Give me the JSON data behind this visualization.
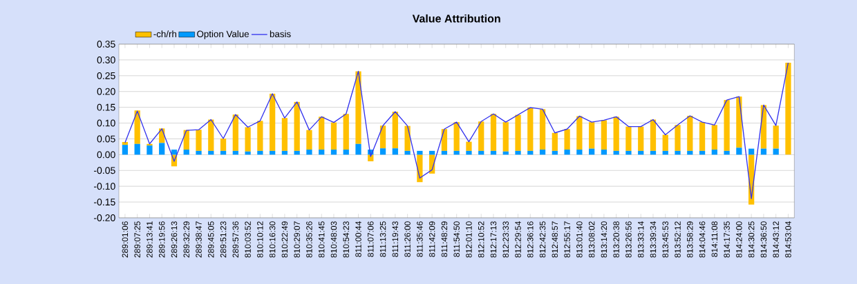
{
  "chart_data": {
    "type": "bar",
    "title": "Value Attribution",
    "stacked": true,
    "categories": [
      "289:01:06",
      "289:07:25",
      "289:13:41",
      "289:19:56",
      "289:26:13",
      "289:32:29",
      "289:38:47",
      "289:45:05",
      "289:51:23",
      "289:57:36",
      "810:03:52",
      "810:10:12",
      "810:16:30",
      "810:22:49",
      "810:29:07",
      "810:35:26",
      "810:41:45",
      "810:48:03",
      "810:54:23",
      "811:00:44",
      "811:07:06",
      "811:13:25",
      "811:19:43",
      "811:26:00",
      "811:35:46",
      "811:42:09",
      "811:48:29",
      "811:54:50",
      "812:01:10",
      "812:10:52",
      "812:17:13",
      "812:23:33",
      "812:29:54",
      "812:36:16",
      "812:42:35",
      "812:48:57",
      "812:55:17",
      "813:01:40",
      "813:08:02",
      "813:14:20",
      "813:20:38",
      "813:26:56",
      "813:33:14",
      "813:39:34",
      "813:45:53",
      "813:52:12",
      "813:58:29",
      "814:04:46",
      "814:11:08",
      "814:17:35",
      "814:24:00",
      "814:30:25",
      "814:36:50",
      "814:43:12",
      "814:53:04"
    ],
    "series": [
      {
        "name": "Option Value",
        "color": "#0099ff",
        "values": [
          0.031,
          0.034,
          0.029,
          0.037,
          0.016,
          0.016,
          0.012,
          0.012,
          0.012,
          0.012,
          0.01,
          0.012,
          0.012,
          0.012,
          0.012,
          0.016,
          0.016,
          0.016,
          0.016,
          0.034,
          0.016,
          0.02,
          0.02,
          0.012,
          0.012,
          0.012,
          0.012,
          0.012,
          0.012,
          0.012,
          0.012,
          0.01,
          0.012,
          0.012,
          0.016,
          0.012,
          0.016,
          0.016,
          0.019,
          0.016,
          0.012,
          0.012,
          0.012,
          0.012,
          0.012,
          0.012,
          0.012,
          0.012,
          0.016,
          0.012,
          0.022,
          0.019,
          0.019,
          0.019,
          0.0
        ]
      },
      {
        "name": "-ch/rh",
        "color": "#ffc000",
        "values": [
          0.009,
          0.106,
          0.005,
          0.046,
          -0.037,
          0.062,
          0.067,
          0.099,
          0.039,
          0.115,
          0.077,
          0.095,
          0.181,
          0.104,
          0.155,
          0.062,
          0.104,
          0.086,
          0.113,
          0.23,
          -0.021,
          0.072,
          0.116,
          0.079,
          -0.087,
          -0.06,
          0.069,
          0.091,
          0.029,
          0.093,
          0.117,
          0.093,
          0.114,
          0.137,
          0.128,
          0.057,
          0.065,
          0.106,
          0.084,
          0.093,
          0.108,
          0.077,
          0.077,
          0.099,
          0.051,
          0.082,
          0.111,
          0.091,
          0.078,
          0.161,
          0.162,
          -0.158,
          0.138,
          0.073,
          0.291
        ]
      },
      {
        "name": "basis",
        "type": "line",
        "color": "#3333ee",
        "values": [
          0.038,
          0.138,
          0.034,
          0.082,
          -0.021,
          0.077,
          0.079,
          0.111,
          0.051,
          0.127,
          0.087,
          0.107,
          0.193,
          0.116,
          0.167,
          0.078,
          0.12,
          0.102,
          0.129,
          0.264,
          -0.006,
          0.092,
          0.136,
          0.091,
          -0.074,
          -0.048,
          0.081,
          0.103,
          0.041,
          0.105,
          0.129,
          0.103,
          0.126,
          0.149,
          0.144,
          0.069,
          0.081,
          0.122,
          0.103,
          0.109,
          0.12,
          0.089,
          0.089,
          0.111,
          0.063,
          0.094,
          0.123,
          0.103,
          0.094,
          0.173,
          0.184,
          -0.139,
          0.157,
          0.092,
          0.291
        ]
      }
    ],
    "ylim": [
      -0.2,
      0.35
    ],
    "yticks": [
      {
        "value": -0.2,
        "label": "-0.20"
      },
      {
        "value": -0.15,
        "label": "-0.15"
      },
      {
        "value": -0.1,
        "label": "-0.10"
      },
      {
        "value": -0.05,
        "label": "-0.05"
      },
      {
        "value": 0,
        "label": "0.00"
      },
      {
        "value": 0.05,
        "label": "0.05"
      },
      {
        "value": 0.1,
        "label": "0.10"
      },
      {
        "value": 0.15,
        "label": "0.15"
      },
      {
        "value": 0.2,
        "label": "0.20"
      },
      {
        "value": 0.25,
        "label": "0.25"
      },
      {
        "value": 0.3,
        "label": "0.30"
      },
      {
        "value": 0.35,
        "label": "0.35"
      }
    ],
    "grid": "y",
    "legend": "top",
    "marker": "none",
    "line_style": "solid"
  }
}
